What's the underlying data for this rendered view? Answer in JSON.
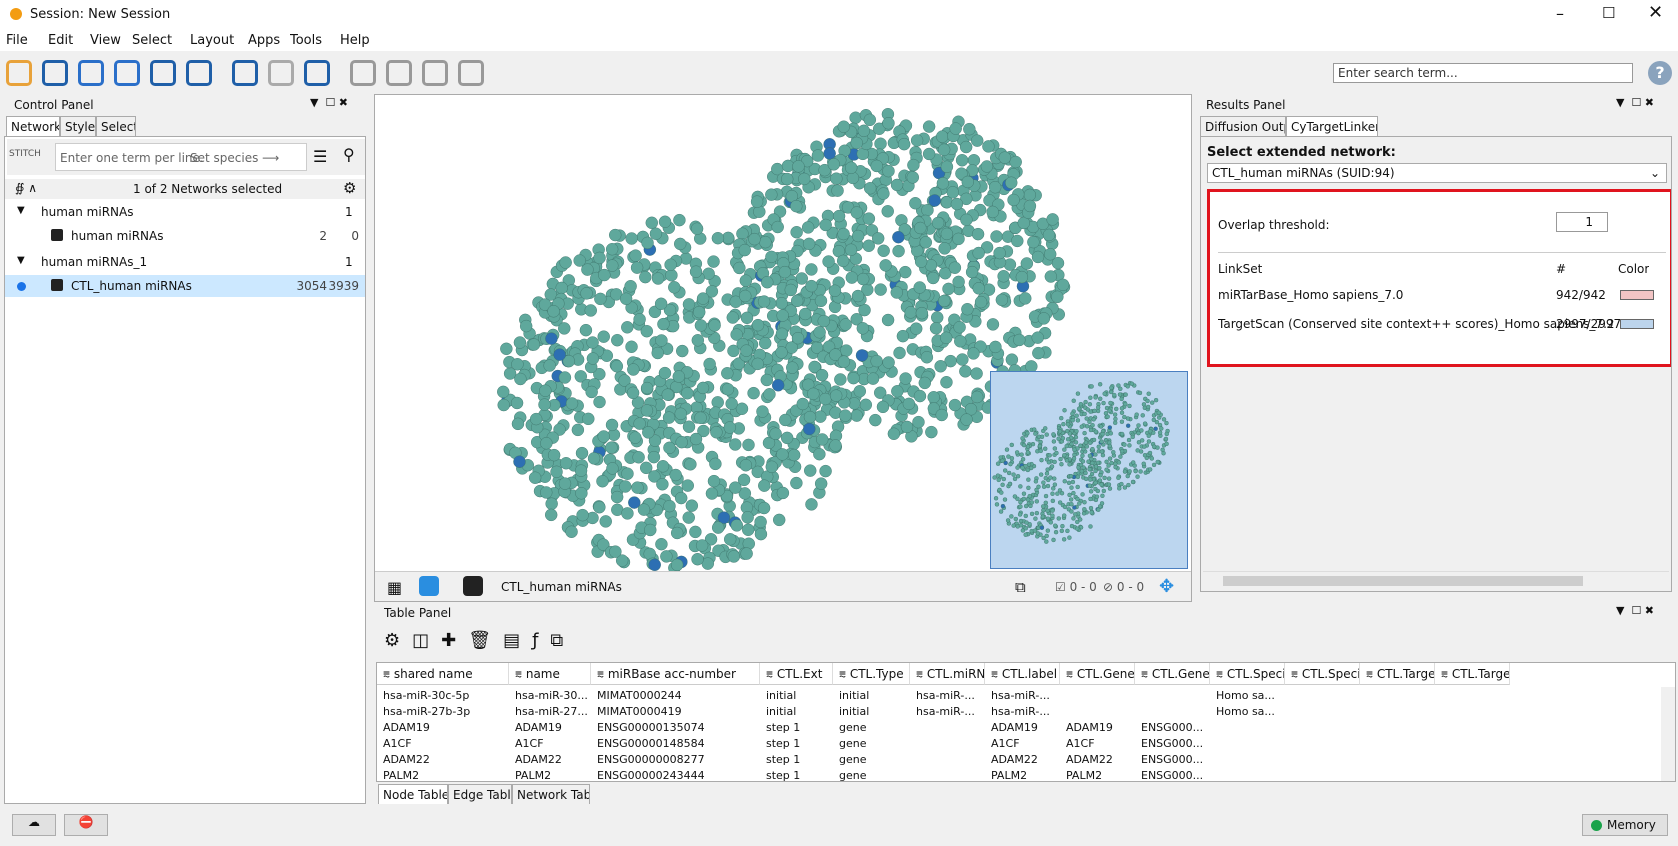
{
  "window": {
    "title": "Session: New Session"
  },
  "menu": [
    "File",
    "Edit",
    "View",
    "Select",
    "Layout",
    "Apps",
    "Tools",
    "Help"
  ],
  "toolbar": {
    "search_placeholder": "Enter search term..."
  },
  "control_panel": {
    "title": "Control Panel",
    "tabs": [
      "Network",
      "Style",
      "Select"
    ],
    "stitch": "STITCH",
    "query_placeholder": "Enter one term per line.",
    "species": "Set species ⟶",
    "selection_status": "1 of 2 Networks selected",
    "tree": [
      {
        "label": "human miRNAs",
        "count": 1,
        "children": [
          {
            "label": "human miRNAs",
            "nodes": 2,
            "edges": 0
          }
        ]
      },
      {
        "label": "human miRNAs_1",
        "count": 1,
        "children": [
          {
            "label": "CTL_human miRNAs",
            "nodes": 3054,
            "edges": 3939
          }
        ]
      }
    ]
  },
  "network_view": {
    "network_name": "CTL_human miRNAs",
    "selected_nodes": "0 - 0",
    "hidden": "0 - 0"
  },
  "results_panel": {
    "title": "Results Panel",
    "tabs": [
      "Diffusion Output",
      "CyTargetLinker"
    ],
    "select_label": "Select extended network:",
    "selected_network": "CTL_human miRNAs (SUID:94)",
    "overlap_label": "Overlap threshold:",
    "overlap_value": 1,
    "headers": [
      "LinkSet",
      "#",
      "Color"
    ],
    "linksets": [
      {
        "name": "miRTarBase_Homo sapiens_7.0",
        "count": "942/942",
        "color": "#f2c4c4"
      },
      {
        "name": "TargetScan (Conserved site context++ scores)_Homo sapiens_7.2",
        "count": "2997/2997",
        "color": "#bcd4ec"
      }
    ]
  },
  "table_panel": {
    "title": "Table Panel",
    "columns": [
      "shared name",
      "name",
      "miRBase acc-number",
      "CTL.Ext",
      "CTL.Type",
      "CTL.miRNA",
      "CTL.label",
      "CTL.Gene...",
      "CTL.Gene...",
      "CTL.Specie",
      "CTL.Specie",
      "CTL.Targe",
      "CTL.Targe"
    ],
    "rows": [
      [
        "hsa-miR-30c-5p",
        "hsa-miR-30...",
        "MIMAT0000244",
        "initial",
        "initial",
        "hsa-miR-...",
        "hsa-miR-...",
        null,
        null,
        "Homo sa...",
        null,
        null,
        null
      ],
      [
        "hsa-miR-27b-3p",
        "hsa-miR-27...",
        "MIMAT0000419",
        "initial",
        "initial",
        "hsa-miR-...",
        "hsa-miR-...",
        null,
        null,
        "Homo sa...",
        null,
        null,
        null
      ],
      [
        "ADAM19",
        "ADAM19",
        "ENSG00000135074",
        "step 1",
        "gene",
        null,
        "ADAM19",
        "ADAM19",
        "ENSG000...",
        null,
        null,
        null,
        null
      ],
      [
        "A1CF",
        "A1CF",
        "ENSG00000148584",
        "step 1",
        "gene",
        null,
        "A1CF",
        "A1CF",
        "ENSG000...",
        null,
        null,
        null,
        null
      ],
      [
        "ADAM22",
        "ADAM22",
        "ENSG00000008277",
        "step 1",
        "gene",
        null,
        "ADAM22",
        "ADAM22",
        "ENSG000...",
        null,
        null,
        null,
        null
      ],
      [
        "PALM2",
        "PALM2",
        "ENSG00000243444",
        "step 1",
        "gene",
        null,
        "PALM2",
        "PALM2",
        "ENSG000...",
        null,
        null,
        null,
        null
      ]
    ],
    "tabs": [
      "Node Table",
      "Edge Table",
      "Network Table"
    ]
  },
  "status_bar": {
    "memory": "Memory"
  }
}
